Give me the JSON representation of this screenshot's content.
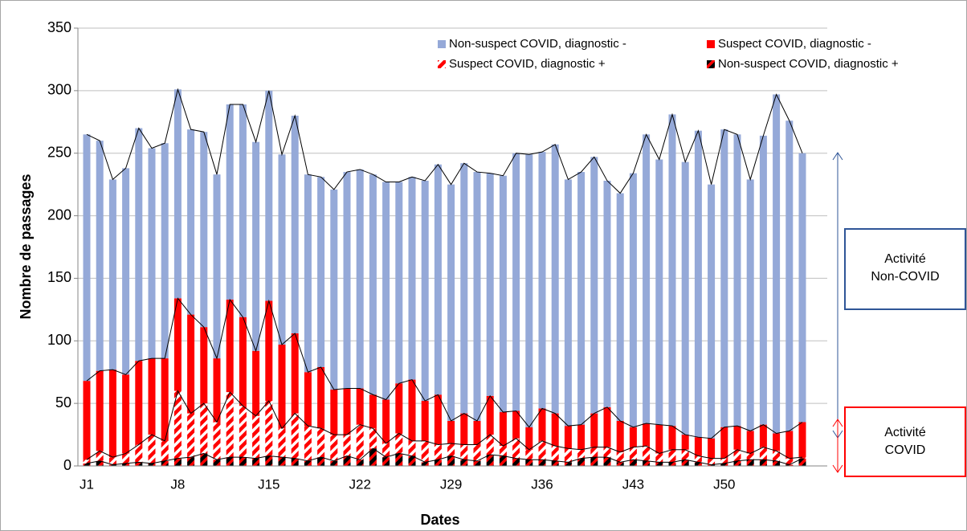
{
  "chart_data": {
    "type": "stacked_bar",
    "x_label": "Dates",
    "y_label": "Nombre de passages",
    "categories": [
      "J1",
      null,
      null,
      null,
      null,
      null,
      null,
      "J8",
      null,
      null,
      null,
      null,
      null,
      null,
      "J15",
      null,
      null,
      null,
      null,
      null,
      null,
      "J22",
      null,
      null,
      null,
      null,
      null,
      null,
      "J29",
      null,
      null,
      null,
      null,
      null,
      null,
      "J36",
      null,
      null,
      null,
      null,
      null,
      null,
      "J43",
      null,
      null,
      null,
      null,
      null,
      null,
      "J50",
      null,
      null,
      null,
      null,
      null,
      null
    ],
    "series": [
      {
        "name": "Non-suspect COVID, diagnostic -",
        "color": "#95A9D8",
        "values": [
          197,
          184,
          152,
          165,
          186,
          168,
          172,
          167,
          148,
          156,
          147,
          156,
          170,
          167,
          168,
          152,
          174,
          158,
          152,
          160,
          173,
          175,
          176,
          174,
          161,
          162,
          176,
          184,
          189,
          200,
          199,
          178,
          189,
          206,
          218,
          205,
          215,
          197,
          202,
          205,
          181,
          182,
          203,
          231,
          212,
          249,
          218,
          245,
          203,
          238,
          233,
          201,
          231,
          271,
          248,
          215
        ]
      },
      {
        "name": "Suspect COVID, diagnostic -",
        "color": "#FF0000",
        "values": [
          63,
          64,
          70,
          63,
          67,
          61,
          66,
          74,
          79,
          61,
          51,
          74,
          71,
          52,
          80,
          67,
          64,
          43,
          49,
          36,
          37,
          29,
          27,
          35,
          40,
          49,
          32,
          40,
          18,
          25,
          19,
          31,
          27,
          22,
          18,
          26,
          26,
          18,
          20,
          27,
          32,
          25,
          16,
          18,
          23,
          19,
          12,
          15,
          16,
          25,
          19,
          18,
          18,
          14,
          22,
          28
        ]
      },
      {
        "name": "Suspect COVID, diagnostic +",
        "color": "#FF0000",
        "pattern": "stripes",
        "pattern_color": "#FFFFFF",
        "values": [
          3,
          8,
          6,
          8,
          14,
          23,
          16,
          54,
          35,
          40,
          30,
          52,
          41,
          34,
          44,
          23,
          36,
          28,
          23,
          21,
          17,
          28,
          16,
          11,
          16,
          12,
          17,
          12,
          10,
          12,
          13,
          16,
          8,
          16,
          8,
          15,
          12,
          11,
          7,
          8,
          8,
          8,
          10,
          12,
          7,
          10,
          8,
          5,
          5,
          4,
          9,
          5,
          10,
          8,
          5,
          1
        ]
      },
      {
        "name": "Non-suspect COVID, diagnostic +",
        "color": "#000000",
        "pattern": "stripes",
        "pattern_color": "#FF0000",
        "values": [
          2,
          4,
          1,
          2,
          3,
          2,
          4,
          6,
          7,
          10,
          5,
          7,
          7,
          6,
          8,
          7,
          6,
          4,
          7,
          4,
          8,
          5,
          14,
          7,
          10,
          8,
          3,
          5,
          8,
          5,
          4,
          9,
          8,
          6,
          5,
          5,
          4,
          3,
          6,
          7,
          7,
          3,
          5,
          4,
          3,
          3,
          5,
          3,
          1,
          2,
          4,
          5,
          5,
          4,
          1,
          6
        ]
      }
    ],
    "ylim": [
      0,
      350
    ],
    "yticks": [
      0,
      50,
      100,
      150,
      200,
      250,
      300,
      350
    ],
    "grid": true,
    "legend": "top-right",
    "annotations": [
      {
        "lines": [
          "Activité",
          "Non-COVID"
        ],
        "color": "#2F5597"
      },
      {
        "lines": [
          "Activité",
          "COVID"
        ],
        "color": "#FF0000"
      }
    ]
  }
}
